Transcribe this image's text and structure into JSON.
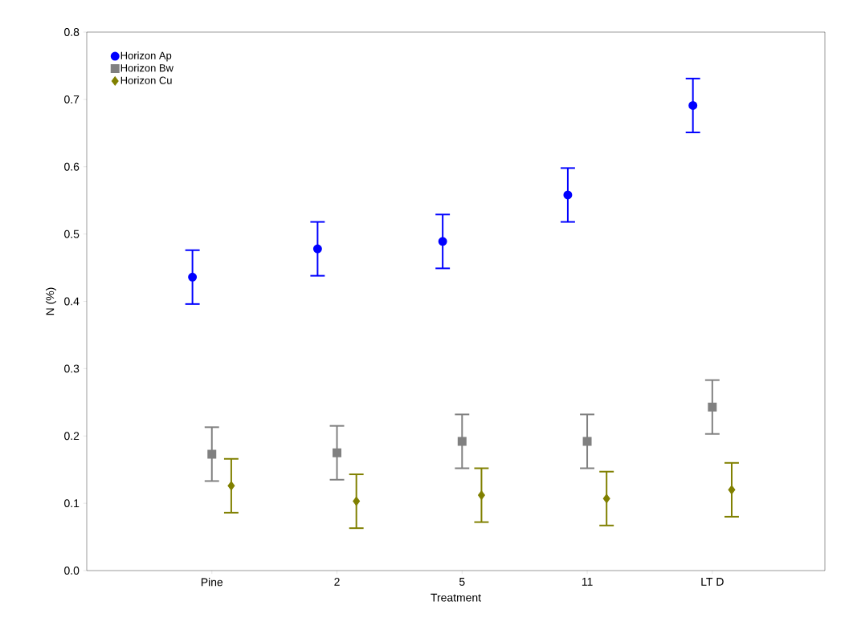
{
  "chart_data": {
    "type": "scatter",
    "xlabel": "Treatment",
    "ylabel": "N (%)",
    "categories": [
      "Pine",
      "2",
      "5",
      "11",
      "LT D"
    ],
    "ylim": [
      0,
      0.8
    ],
    "yticks": [
      {
        "value": 0,
        "label": "0.0"
      },
      {
        "value": 0.1,
        "label": "0.1"
      },
      {
        "value": 0.2,
        "label": "0.2"
      },
      {
        "value": 0.3,
        "label": "0.3"
      },
      {
        "value": 0.4,
        "label": "0.4"
      },
      {
        "value": 0.5,
        "label": "0.5"
      },
      {
        "value": 0.6,
        "label": "0.6"
      },
      {
        "value": 0.7,
        "label": "0.7"
      },
      {
        "value": 0.8,
        "label": "0.8"
      }
    ],
    "legend": "top left",
    "grid": false,
    "series": [
      {
        "name": "Horizon Ap",
        "color": "#0000ff",
        "marker": "circle",
        "values": [
          0.436,
          0.478,
          0.489,
          0.558,
          0.691
        ],
        "errors": [
          0.04,
          0.04,
          0.04,
          0.04,
          0.04
        ]
      },
      {
        "name": "Horizon Bw",
        "color": "#808080",
        "marker": "square",
        "values": [
          0.173,
          0.175,
          0.192,
          0.192,
          0.243
        ],
        "errors": [
          0.04,
          0.04,
          0.04,
          0.04,
          0.04
        ]
      },
      {
        "name": "Horizon Cu",
        "color": "#808000",
        "marker": "diamond",
        "values": [
          0.126,
          0.103,
          0.112,
          0.107,
          0.12
        ],
        "errors": [
          0.04,
          0.04,
          0.04,
          0.04,
          0.04
        ]
      }
    ]
  }
}
